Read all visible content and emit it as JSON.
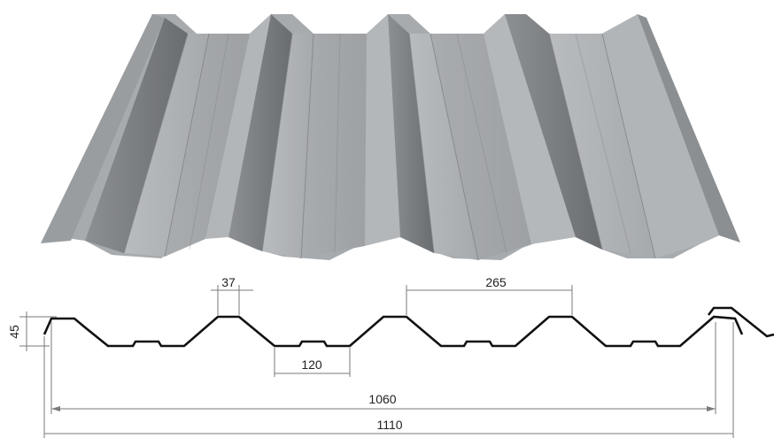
{
  "dimensions": {
    "height": "45",
    "crest_width": "37",
    "pitch": "265",
    "valley_width": "120",
    "cover_width": "1060",
    "total_width": "1110"
  }
}
